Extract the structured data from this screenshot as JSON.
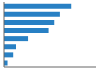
{
  "chart_data": {
    "type": "bar",
    "orientation": "horizontal",
    "categories": [
      null,
      null,
      null,
      null,
      null,
      null,
      null,
      null
    ],
    "values": [
      9500,
      7900,
      7100,
      6300,
      3400,
      1700,
      1300,
      500
    ],
    "color": "#2880c4",
    "xlim": [
      0,
      13000
    ],
    "tick_labels": false
  }
}
